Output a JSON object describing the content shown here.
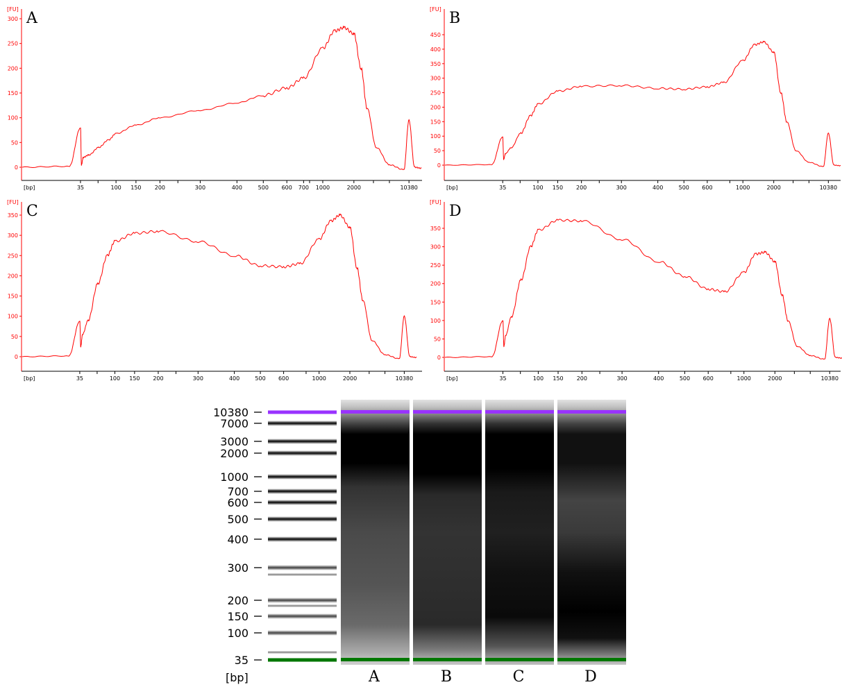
{
  "panels": [
    {
      "letter": "A",
      "yunit": "[FU]",
      "xunit": "[bp]",
      "yticks": [
        0,
        50,
        100,
        150,
        200,
        250,
        300
      ],
      "ymax": 300
    },
    {
      "letter": "B",
      "yunit": "[FU]",
      "xunit": "[bp]",
      "yticks": [
        0,
        50,
        100,
        150,
        200,
        250,
        300,
        350,
        400,
        450
      ],
      "ymax": 450
    },
    {
      "letter": "C",
      "yunit": "[FU]",
      "xunit": "[bp]",
      "yticks": [
        0,
        50,
        100,
        150,
        200,
        250,
        300,
        350
      ],
      "ymax": 350
    },
    {
      "letter": "D",
      "yunit": "[FU]",
      "xunit": "[bp]",
      "yticks": [
        0,
        50,
        100,
        150,
        200,
        250,
        300,
        350
      ],
      "ymax": 350
    }
  ],
  "colors": {
    "trace": "#ff0000",
    "axis": "#ff0000",
    "upper_marker": "#9933ff",
    "lower_marker": "#007700"
  },
  "chart_data": [
    {
      "type": "line",
      "title": "A",
      "xlabel": "[bp]",
      "ylabel": "[FU]",
      "xscale": "log",
      "xticks": [
        "35",
        "100",
        "150",
        "200",
        "300",
        "400",
        "500",
        "600",
        "700",
        "1000",
        "2000",
        "10380"
      ],
      "ylim": [
        0,
        300
      ],
      "series": [
        {
          "x": [
            30,
            34,
            35,
            36,
            38,
            45,
            60,
            80,
            100,
            150,
            200,
            300,
            400,
            500,
            600,
            700,
            1000,
            1300,
            1600,
            2000,
            2500,
            3000,
            4000,
            6000,
            9000,
            10380,
            11500,
            13000
          ],
          "y": [
            0,
            2,
            80,
            5,
            20,
            25,
            40,
            55,
            68,
            85,
            100,
            115,
            130,
            145,
            160,
            180,
            240,
            275,
            282,
            270,
            200,
            120,
            40,
            5,
            -5,
            95,
            0,
            -2
          ]
        }
      ]
    },
    {
      "type": "line",
      "title": "B",
      "xlabel": "[bp]",
      "ylabel": "[FU]",
      "xscale": "log",
      "xticks": [
        "35",
        "100",
        "150",
        "200",
        "300",
        "400",
        "500",
        "600",
        "1000",
        "2000",
        "10380"
      ],
      "ylim": [
        0,
        450
      ],
      "series": [
        {
          "x": [
            30,
            34,
            35,
            36,
            38,
            45,
            60,
            80,
            100,
            150,
            200,
            300,
            400,
            500,
            600,
            700,
            1000,
            1300,
            1600,
            2000,
            2500,
            3000,
            4000,
            6000,
            9000,
            10380,
            11500,
            13000
          ],
          "y": [
            0,
            2,
            98,
            20,
            40,
            60,
            110,
            170,
            210,
            255,
            272,
            275,
            265,
            262,
            270,
            285,
            360,
            415,
            425,
            390,
            250,
            150,
            50,
            10,
            -5,
            110,
            0,
            -2
          ]
        }
      ]
    },
    {
      "type": "line",
      "title": "C",
      "xlabel": "[bp]",
      "ylabel": "[FU]",
      "xscale": "log",
      "xticks": [
        "35",
        "100",
        "150",
        "200",
        "300",
        "400",
        "500",
        "600",
        "1000",
        "2000",
        "10380"
      ],
      "ylim": [
        0,
        350
      ],
      "series": [
        {
          "x": [
            30,
            34,
            35,
            36,
            38,
            45,
            60,
            80,
            100,
            150,
            200,
            300,
            400,
            500,
            600,
            700,
            1000,
            1300,
            1600,
            2000,
            2500,
            3000,
            4000,
            6000,
            9000,
            10380,
            11500,
            13000
          ],
          "y": [
            0,
            2,
            88,
            25,
            55,
            90,
            180,
            250,
            285,
            305,
            310,
            285,
            250,
            225,
            222,
            230,
            290,
            335,
            350,
            320,
            220,
            140,
            40,
            5,
            -5,
            100,
            0,
            -2
          ]
        }
      ]
    },
    {
      "type": "line",
      "title": "D",
      "xlabel": "[bp]",
      "ylabel": "[FU]",
      "xscale": "log",
      "xticks": [
        "35",
        "100",
        "150",
        "200",
        "300",
        "400",
        "500",
        "600",
        "1000",
        "2000",
        "10380"
      ],
      "ylim": [
        0,
        350
      ],
      "series": [
        {
          "x": [
            30,
            34,
            35,
            36,
            38,
            45,
            60,
            80,
            100,
            150,
            200,
            300,
            400,
            500,
            600,
            700,
            1000,
            1300,
            1600,
            2000,
            2500,
            3000,
            4000,
            6000,
            9000,
            10380,
            11500,
            13000
          ],
          "y": [
            0,
            2,
            100,
            30,
            60,
            110,
            210,
            300,
            345,
            372,
            370,
            320,
            260,
            220,
            185,
            178,
            230,
            280,
            285,
            260,
            170,
            100,
            30,
            5,
            -5,
            105,
            0,
            -2
          ]
        }
      ]
    },
    {
      "type": "table",
      "title": "gel image",
      "ylabel": "[bp]",
      "ladder_labels": [
        "10380",
        "7000",
        "3000",
        "2000",
        "1000",
        "700",
        "600",
        "500",
        "400",
        "300",
        "200",
        "150",
        "100",
        "35"
      ],
      "ladder_sizes": [
        10380,
        7000,
        3000,
        2000,
        1000,
        700,
        600,
        500,
        400,
        300,
        200,
        150,
        100,
        35
      ],
      "lanes": [
        "A",
        "B",
        "C",
        "D"
      ]
    }
  ]
}
